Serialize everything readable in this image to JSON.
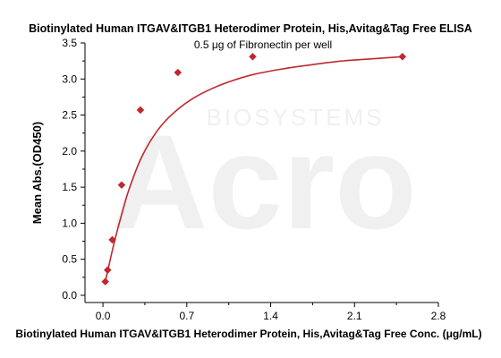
{
  "chart_data": {
    "type": "scatter",
    "title": "Biotinylated Human ITGAV&ITGB1 Heterodimer Protein, His,Avitag&Tag Free ELISA",
    "subtitle": "0.5 μg of Fibronectin per well",
    "xlabel": "Biotinylated Human ITGAV&ITGB1 Heterodimer Protein, His,Avitag&Tag Free Conc. (μg/mL)",
    "ylabel": "Mean Abs.(OD450)",
    "xlim": [
      -0.15,
      2.8
    ],
    "ylim": [
      -0.1,
      3.5
    ],
    "x_ticks": [
      0.0,
      0.7,
      1.4,
      2.1,
      2.8
    ],
    "x_tick_labels": [
      "0.0",
      "0.7",
      "1.4",
      "2.1",
      "2.8"
    ],
    "y_ticks": [
      0.0,
      0.5,
      1.0,
      1.5,
      2.0,
      2.5,
      3.0,
      3.5
    ],
    "y_tick_labels": [
      "0.0",
      "0.5",
      "1.0",
      "1.5",
      "2.0",
      "2.5",
      "3.0",
      "3.5"
    ],
    "grid": false,
    "series": [
      {
        "color": "#c0282d",
        "marker": "diamond",
        "x": [
          0.0195,
          0.039,
          0.078,
          0.156,
          0.3125,
          0.625,
          1.25,
          2.5
        ],
        "y": [
          0.19,
          0.35,
          0.77,
          1.53,
          2.57,
          3.09,
          3.31,
          3.31
        ],
        "fit": "4PL",
        "fit_points": [
          [
            0.0195,
            0.19
          ],
          [
            0.04,
            0.34
          ],
          [
            0.078,
            0.62
          ],
          [
            0.12,
            0.9
          ],
          [
            0.156,
            1.12
          ],
          [
            0.2,
            1.38
          ],
          [
            0.25,
            1.62
          ],
          [
            0.3125,
            1.88
          ],
          [
            0.4,
            2.15
          ],
          [
            0.5,
            2.38
          ],
          [
            0.625,
            2.58
          ],
          [
            0.75,
            2.73
          ],
          [
            0.9,
            2.86
          ],
          [
            1.05,
            2.96
          ],
          [
            1.25,
            3.06
          ],
          [
            1.5,
            3.14
          ],
          [
            1.75,
            3.2
          ],
          [
            2.0,
            3.25
          ],
          [
            2.25,
            3.28
          ],
          [
            2.5,
            3.31
          ]
        ]
      }
    ]
  },
  "watermark": {
    "brand": "Acro",
    "sub": "BIOSYSTEMS"
  }
}
